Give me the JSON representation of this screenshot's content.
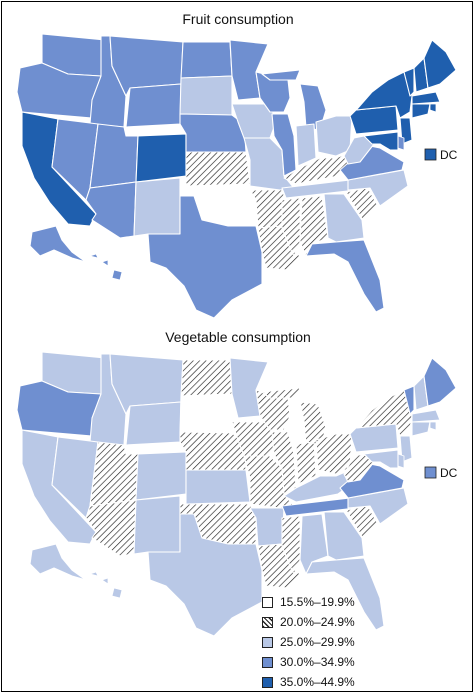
{
  "maps": [
    {
      "id": "fruit",
      "title": "Fruit consumption",
      "dc_label": "DC",
      "dc_category": 4,
      "states": {
        "WA": 3,
        "OR": 3,
        "CA": 4,
        "ID": 3,
        "NV": 3,
        "MT": 3,
        "WY": 3,
        "UT": 3,
        "AZ": 3,
        "CO": 4,
        "NM": 2,
        "ND": 3,
        "SD": 2,
        "NE": 3,
        "KS": 1,
        "OK": 0,
        "TX": 3,
        "MN": 3,
        "IA": 2,
        "MO": 2,
        "AR": 1,
        "LA": 1,
        "WI": 3,
        "IL": 3,
        "MI": 3,
        "IN": 2,
        "OH": 2,
        "KY": 1,
        "TN": 2,
        "MS": 1,
        "AL": 1,
        "GA": 2,
        "FL": 3,
        "SC": 1,
        "NC": 2,
        "VA": 3,
        "WV": 2,
        "PA": 4,
        "NY": 4,
        "VT": 4,
        "NH": 4,
        "ME": 4,
        "MA": 4,
        "RI": 4,
        "CT": 4,
        "NJ": 4,
        "DE": 3,
        "MD": 4,
        "AK": 3,
        "HI": 3
      }
    },
    {
      "id": "vegetable",
      "title": "Vegetable consumption",
      "dc_label": "DC",
      "dc_category": 3,
      "states": {
        "WA": 2,
        "OR": 3,
        "CA": 2,
        "ID": 2,
        "NV": 2,
        "MT": 2,
        "WY": 2,
        "UT": 1,
        "AZ": 1,
        "CO": 2,
        "NM": 2,
        "ND": 1,
        "SD": 0,
        "NE": 1,
        "KS": 2,
        "OK": 1,
        "TX": 2,
        "MN": 2,
        "IA": 1,
        "MO": 1,
        "AR": 2,
        "LA": 1,
        "WI": 1,
        "IL": 1,
        "MI": 1,
        "IN": 1,
        "OH": 1,
        "KY": 2,
        "TN": 3,
        "MS": 1,
        "AL": 2,
        "GA": 2,
        "FL": 2,
        "SC": 1,
        "NC": 2,
        "VA": 3,
        "WV": 1,
        "PA": 2,
        "NY": 1,
        "VT": 3,
        "NH": 2,
        "ME": 3,
        "MA": 2,
        "RI": 2,
        "CT": 2,
        "NJ": 2,
        "DE": 2,
        "MD": 2,
        "AK": 2,
        "HI": 2
      }
    }
  ],
  "legend": [
    {
      "label": "15.5%–19.9%",
      "category": 0
    },
    {
      "label": "20.0%–24.9%",
      "category": 1
    },
    {
      "label": "25.0%–29.9%",
      "category": 2
    },
    {
      "label": "30.0%–34.9%",
      "category": 3
    },
    {
      "label": "35.0%–44.9%",
      "category": 4
    }
  ],
  "colors": {
    "cat0": "#ffffff",
    "cat1": "hatch",
    "cat2": "#b9c8e6",
    "cat3": "#6f8fd0",
    "cat4": "#1f5fae"
  }
}
